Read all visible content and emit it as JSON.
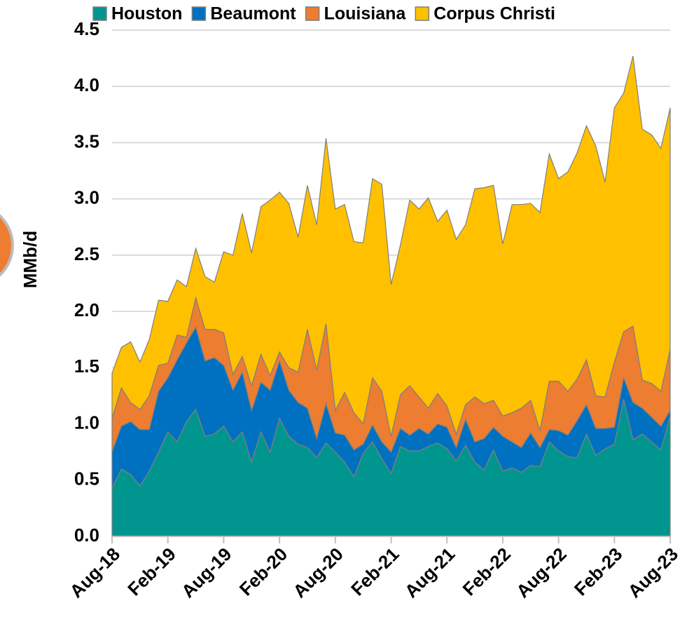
{
  "chart_data": {
    "type": "stacked_area",
    "y_label": "MMb/d",
    "categories": [
      "Aug-18",
      null,
      null,
      null,
      null,
      null,
      "Feb-19",
      null,
      null,
      null,
      null,
      null,
      "Aug-19",
      null,
      null,
      null,
      null,
      null,
      "Feb-20",
      null,
      null,
      null,
      null,
      null,
      "Aug-20",
      null,
      null,
      null,
      null,
      null,
      "Feb-21",
      null,
      null,
      null,
      null,
      null,
      "Aug-21",
      null,
      null,
      null,
      null,
      null,
      "Feb-22",
      null,
      null,
      null,
      null,
      null,
      "Aug-22",
      null,
      null,
      null,
      null,
      null,
      "Feb-23",
      null,
      null,
      null,
      null,
      null,
      "Aug-23"
    ],
    "series": [
      {
        "name": "Houston",
        "color": "#00968f",
        "values": [
          0.43,
          0.6,
          0.55,
          0.45,
          0.58,
          0.75,
          0.93,
          0.84,
          1.02,
          1.13,
          0.89,
          0.91,
          0.98,
          0.84,
          0.93,
          0.66,
          0.93,
          0.75,
          1.05,
          0.89,
          0.82,
          0.79,
          0.7,
          0.83,
          0.75,
          0.66,
          0.53,
          0.74,
          0.84,
          0.69,
          0.56,
          0.8,
          0.76,
          0.76,
          0.8,
          0.83,
          0.78,
          0.67,
          0.81,
          0.66,
          0.59,
          0.77,
          0.58,
          0.61,
          0.57,
          0.63,
          0.62,
          0.84,
          0.76,
          0.71,
          0.7,
          0.91,
          0.72,
          0.78,
          0.82,
          1.22,
          0.86,
          0.91,
          0.84,
          0.77,
          1.07
        ]
      },
      {
        "name": "Beaumont",
        "color": "#0070c0",
        "values": [
          0.32,
          0.38,
          0.47,
          0.5,
          0.37,
          0.54,
          0.48,
          0.73,
          0.7,
          0.73,
          0.67,
          0.68,
          0.54,
          0.46,
          0.53,
          0.46,
          0.44,
          0.55,
          0.51,
          0.41,
          0.37,
          0.35,
          0.17,
          0.35,
          0.17,
          0.24,
          0.24,
          0.08,
          0.15,
          0.15,
          0.19,
          0.16,
          0.14,
          0.2,
          0.11,
          0.17,
          0.19,
          0.12,
          0.23,
          0.18,
          0.28,
          0.2,
          0.31,
          0.23,
          0.22,
          0.29,
          0.17,
          0.11,
          0.18,
          0.19,
          0.33,
          0.26,
          0.24,
          0.18,
          0.15,
          0.19,
          0.33,
          0.23,
          0.22,
          0.21,
          0.05
        ]
      },
      {
        "name": "Louisiana",
        "color": "#ed7d31",
        "values": [
          0.3,
          0.34,
          0.17,
          0.18,
          0.3,
          0.23,
          0.13,
          0.22,
          0.05,
          0.26,
          0.28,
          0.25,
          0.29,
          0.14,
          0.14,
          0.22,
          0.25,
          0.13,
          0.08,
          0.2,
          0.27,
          0.7,
          0.61,
          0.71,
          0.2,
          0.38,
          0.33,
          0.18,
          0.42,
          0.45,
          0.14,
          0.3,
          0.44,
          0.28,
          0.23,
          0.27,
          0.19,
          0.12,
          0.13,
          0.4,
          0.31,
          0.24,
          0.18,
          0.26,
          0.35,
          0.29,
          0.15,
          0.43,
          0.44,
          0.39,
          0.37,
          0.4,
          0.29,
          0.28,
          0.58,
          0.41,
          0.68,
          0.25,
          0.3,
          0.31,
          0.54
        ]
      },
      {
        "name": "Corpus Christi",
        "color": "#ffc000",
        "values": [
          0.4,
          0.36,
          0.54,
          0.42,
          0.5,
          0.58,
          0.55,
          0.49,
          0.45,
          0.44,
          0.47,
          0.42,
          0.72,
          1.06,
          1.27,
          1.18,
          1.31,
          1.56,
          1.42,
          1.46,
          1.2,
          1.28,
          1.29,
          1.65,
          1.79,
          1.67,
          1.52,
          1.61,
          1.77,
          1.84,
          1.35,
          1.33,
          1.65,
          1.67,
          1.87,
          1.53,
          1.74,
          1.73,
          1.6,
          1.85,
          1.92,
          1.91,
          1.53,
          1.85,
          1.81,
          1.75,
          1.94,
          2.02,
          1.8,
          1.95,
          2.01,
          2.08,
          2.22,
          1.91,
          2.26,
          2.12,
          2.4,
          2.23,
          2.21,
          2.16,
          2.15
        ]
      }
    ],
    "ylim": [
      0,
      4.5
    ],
    "yticks": [
      {
        "value": 0,
        "label": "0.0"
      },
      0.5,
      {
        "value": 1,
        "label": "1.0"
      },
      1.5,
      {
        "value": 2,
        "label": "2.0"
      },
      2.5,
      {
        "value": 3,
        "label": "3.0"
      },
      3.5,
      {
        "value": 4,
        "label": "4.0"
      },
      4.5
    ],
    "grid": true,
    "legend": "top"
  }
}
